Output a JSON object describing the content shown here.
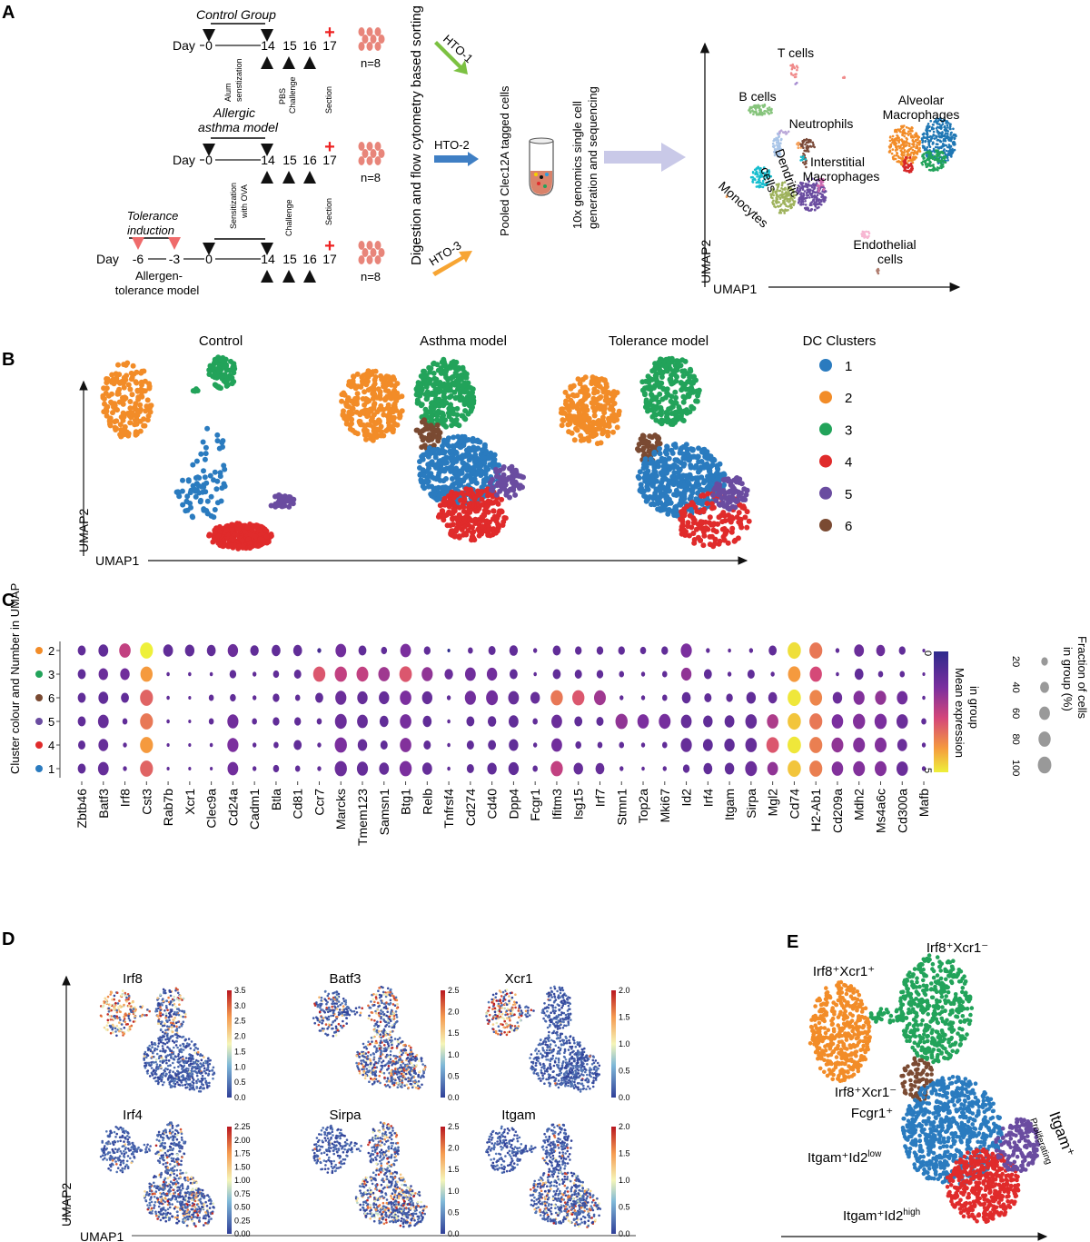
{
  "panel_labels": {
    "a": "A",
    "b": "B",
    "c": "C",
    "d": "D",
    "e": "E"
  },
  "panel_a": {
    "control_group": "Control Group",
    "asthma_title_1": "Allergic",
    "asthma_title_2": "asthma model",
    "tolerance_title_1": "Tolerance",
    "tolerance_title_2": "induction",
    "tolerance_model_1": "Allergen-",
    "tolerance_model_2": "tolerance model",
    "day_label": "Day",
    "days": [
      "0",
      "14",
      "15",
      "16",
      "17"
    ],
    "tolerance_days": [
      "-6",
      "-3"
    ],
    "alum_1": "Alum",
    "alum_2": "senstization",
    "pbs_1": "PBS",
    "pbs_2": "Challenge",
    "section": "Section",
    "ova_1": "Sensitization",
    "ova_2": "with OVA",
    "challenge": "Challenge",
    "n": "n=8",
    "sorting": "Digestion and flow cytometry based sorting",
    "hto1": "HTO-1",
    "hto2": "HTO-2",
    "hto3": "HTO-3",
    "pooled": "Pooled Clec12A tagged cells",
    "tenx_1": "10x genomics single cell",
    "tenx_2": "generation and sequencing",
    "umap": {
      "xlabel": "UMAP1",
      "ylabel": "UMAP2",
      "labels": {
        "t_cells": "T cells",
        "b_cells": "B cells",
        "neutrophils": "Neutrophils",
        "alveolar_1": "Alveolar",
        "alveolar_2": "Macrophages",
        "interstitial_1": "Interstitial",
        "interstitial_2": "Macrophages",
        "dendritic_1": "Dendritic",
        "dendritic_2": "cells",
        "monocytes": "Monocytes",
        "endothelial_1": "Endothelial",
        "endothelial_2": "cells"
      }
    }
  },
  "panel_b": {
    "titles": [
      "Control",
      "Asthma model",
      "Tolerance model"
    ],
    "xlabel": "UMAP1",
    "ylabel": "UMAP2",
    "legend_title": "DC Clusters",
    "clusters": [
      {
        "id": "1",
        "color": "#2a7bbf"
      },
      {
        "id": "2",
        "color": "#f28c28"
      },
      {
        "id": "3",
        "color": "#22a35a"
      },
      {
        "id": "4",
        "color": "#e02b2b"
      },
      {
        "id": "5",
        "color": "#6a4ca0"
      },
      {
        "id": "6",
        "color": "#7a4a32"
      }
    ]
  },
  "chart_data": {
    "type": "dotplot",
    "ylabel": "Cluster colour and Number in UMAP",
    "rows": [
      "2",
      "3",
      "6",
      "5",
      "4",
      "1"
    ],
    "row_colors": [
      "#f28c28",
      "#22a35a",
      "#7a4a32",
      "#6a4ca0",
      "#e02b2b",
      "#2a7bbf"
    ],
    "genes": [
      "Zbtb46",
      "Batf3",
      "Irf8",
      "Cst3",
      "Rab7b",
      "Xcr1",
      "Clec9a",
      "Cd24a",
      "Cadm1",
      "Btla",
      "Cd81",
      "Ccr7",
      "Marcks",
      "Tmem123",
      "Samsn1",
      "Btg1",
      "Relb",
      "Tnfrsf4",
      "Cd274",
      "Cd40",
      "Dpp4",
      "Fcgr1",
      "Ifitm3",
      "Isg15",
      "Irf7",
      "Stmn1",
      "Top2a",
      "Mki67",
      "Id2",
      "Irf4",
      "Itgam",
      "Sirpa",
      "Mgl2",
      "Cd74",
      "H2-Ab1",
      "Cd209a",
      "Mdh2",
      "Ms4a6c",
      "Cd300a",
      "Mafb"
    ],
    "fraction_pct": [
      [
        30,
        50,
        70,
        90,
        50,
        45,
        40,
        55,
        35,
        40,
        40,
        5,
        60,
        30,
        15,
        60,
        20,
        2,
        10,
        25,
        35,
        5,
        30,
        20,
        20,
        20,
        15,
        20,
        65,
        5,
        3,
        5,
        30,
        95,
        90,
        5,
        50,
        40,
        20,
        2
      ],
      [
        30,
        45,
        45,
        80,
        3,
        3,
        3,
        20,
        5,
        15,
        25,
        80,
        80,
        75,
        70,
        85,
        65,
        35,
        60,
        55,
        30,
        3,
        30,
        25,
        20,
        10,
        5,
        10,
        55,
        30,
        5,
        25,
        5,
        85,
        80,
        3,
        40,
        10,
        10,
        2
      ],
      [
        30,
        50,
        30,
        90,
        3,
        2,
        10,
        15,
        5,
        20,
        10,
        30,
        65,
        55,
        55,
        70,
        55,
        5,
        65,
        75,
        60,
        45,
        80,
        80,
        75,
        5,
        5,
        10,
        40,
        25,
        20,
        45,
        40,
        95,
        85,
        45,
        65,
        65,
        60,
        3
      ],
      [
        30,
        60,
        10,
        90,
        3,
        2,
        10,
        65,
        10,
        20,
        20,
        10,
        75,
        60,
        40,
        70,
        40,
        3,
        30,
        35,
        50,
        10,
        60,
        30,
        25,
        80,
        70,
        75,
        60,
        45,
        50,
        70,
        70,
        95,
        90,
        70,
        80,
        80,
        70,
        10
      ],
      [
        25,
        50,
        5,
        90,
        2,
        2,
        3,
        65,
        5,
        10,
        30,
        5,
        80,
        45,
        25,
        70,
        25,
        3,
        25,
        30,
        45,
        5,
        60,
        15,
        10,
        10,
        5,
        10,
        65,
        50,
        55,
        70,
        85,
        98,
        90,
        75,
        75,
        75,
        50,
        5
      ],
      [
        30,
        60,
        5,
        90,
        2,
        2,
        2,
        60,
        5,
        15,
        10,
        5,
        80,
        65,
        50,
        80,
        50,
        3,
        25,
        45,
        55,
        10,
        80,
        45,
        40,
        5,
        3,
        5,
        20,
        40,
        45,
        75,
        60,
        95,
        90,
        70,
        75,
        75,
        70,
        5
      ]
    ],
    "mean_expression": [
      [
        1,
        1,
        2.5,
        5,
        1,
        1,
        1,
        1.2,
        1,
        1,
        1,
        0.5,
        1.3,
        1,
        1,
        1.5,
        1,
        0,
        1,
        1,
        1,
        1,
        1,
        1,
        1,
        1,
        1,
        1,
        1.5,
        1,
        1,
        1,
        1,
        4.8,
        3.5,
        1,
        1.2,
        1.2,
        1,
        1
      ],
      [
        1,
        1.2,
        1.3,
        4,
        1,
        1,
        1,
        1,
        1,
        1,
        1,
        3,
        2.5,
        2.5,
        2,
        3,
        1.8,
        1.2,
        1.3,
        1.3,
        1,
        1,
        1,
        1,
        1,
        1,
        1,
        1,
        1.8,
        1,
        1,
        1,
        1,
        4,
        2.8,
        1,
        1,
        1,
        1,
        1
      ],
      [
        1,
        1,
        1,
        3.2,
        1,
        1,
        1,
        1,
        1,
        1,
        1,
        1,
        1.2,
        1.1,
        1.1,
        1.5,
        1.1,
        1,
        1.3,
        1.3,
        1.1,
        1.1,
        3.5,
        3,
        2,
        1,
        1,
        1,
        1,
        1,
        1,
        1,
        1.1,
        4.9,
        3.7,
        1.2,
        1.6,
        1.8,
        1.3,
        1
      ],
      [
        1,
        1.1,
        1,
        3.5,
        1,
        1,
        1,
        1.3,
        1,
        1,
        1,
        1,
        1.2,
        1.1,
        1,
        1.4,
        1,
        1,
        1,
        1,
        1,
        1,
        1.2,
        1,
        1,
        1.8,
        1.5,
        1.4,
        1.1,
        1,
        1,
        1.1,
        2.2,
        4.5,
        3.5,
        1.5,
        1.6,
        1.5,
        1.2,
        1
      ],
      [
        1,
        1.1,
        1,
        4,
        1,
        1,
        1,
        1.5,
        1,
        1,
        1,
        1,
        1.5,
        1.1,
        1,
        1.6,
        1,
        1,
        1,
        1,
        1,
        1,
        1.3,
        1,
        1,
        1,
        1,
        1,
        1.1,
        1,
        1,
        1.1,
        3,
        4.9,
        3.6,
        1.8,
        1.6,
        1.6,
        1.2,
        1
      ],
      [
        1,
        1.1,
        1,
        3.2,
        1,
        1,
        1,
        1.3,
        1,
        1,
        1,
        1,
        1.2,
        1.1,
        1.1,
        1.5,
        1.1,
        1,
        1,
        1,
        1,
        1,
        2.5,
        1.1,
        1.1,
        1,
        1,
        1,
        1,
        1,
        1,
        1.2,
        1.8,
        4.5,
        3.6,
        1.6,
        1.6,
        1.6,
        1.2,
        1
      ]
    ],
    "colorbar": {
      "label_1": "Mean expression",
      "label_2": "in group",
      "min": "0",
      "mid": "",
      "max": "5",
      "range": [
        0,
        5
      ]
    },
    "size_legend": {
      "label_1": "Fraction of cells",
      "label_2": "in group (%)",
      "values": [
        "20",
        "40",
        "60",
        "80",
        "100"
      ]
    }
  },
  "panel_d": {
    "xlabel": "UMAP1",
    "ylabel": "UMAP2",
    "genes": [
      {
        "name": "Irf8",
        "ticks": [
          "3.5",
          "3.0",
          "2.5",
          "2.0",
          "1.5",
          "1.0",
          "0.5",
          "0.0"
        ]
      },
      {
        "name": "Batf3",
        "ticks": [
          "2.5",
          "2.0",
          "1.5",
          "1.0",
          "0.5",
          "0.0"
        ]
      },
      {
        "name": "Xcr1",
        "ticks": [
          "2.0",
          "1.5",
          "1.0",
          "0.5",
          "0.0"
        ]
      },
      {
        "name": "Irf4",
        "ticks": [
          "2.25",
          "2.00",
          "1.75",
          "1.50",
          "1.00",
          "0.75",
          "0.50",
          "0.25",
          "0.00"
        ]
      },
      {
        "name": "Sirpa",
        "ticks": [
          "2.5",
          "2.0",
          "1.5",
          "1.0",
          "0.5",
          "0.0"
        ]
      },
      {
        "name": "Itgam",
        "ticks": [
          "2.0",
          "1.5",
          "1.0",
          "0.5",
          "0.0"
        ]
      }
    ]
  },
  "panel_e": {
    "irf8_xcr1_pos": "Irf8⁺Xcr1⁺",
    "irf8_xcr1_neg": "Irf8⁺Xcr1⁻",
    "fcgr1_1": "Irf8⁺Xcr1⁻",
    "fcgr1_2": "Fcgr1⁺",
    "id2_low": "Itgam⁺Id2",
    "id2_low_sup": "low",
    "id2_high": "Itgam⁺Id2",
    "id2_high_sup": "high",
    "prolif_1": "Itgam⁺",
    "prolif_2": "Proliferating"
  }
}
